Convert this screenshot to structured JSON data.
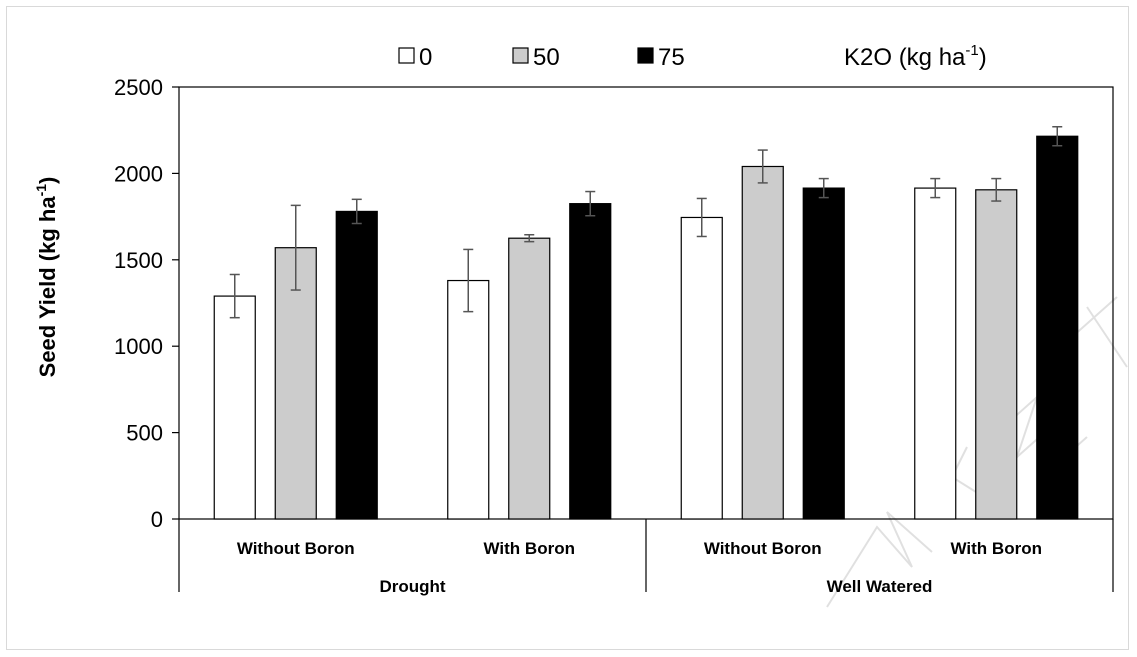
{
  "chart_data": {
    "type": "bar",
    "title": "",
    "ylabel": "Seed Yield (kg ha",
    "ylabel_sup": "-1",
    "ylabel_close": ")",
    "ylim": [
      0,
      2500
    ],
    "yticks": [
      0,
      500,
      1000,
      1500,
      2000,
      2500
    ],
    "grid": false,
    "legend_position": "top",
    "legend_title": "K2O (kg ha",
    "legend_title_sup": "-1",
    "legend_title_close": ")",
    "groups": [
      "Drought",
      "Well Watered"
    ],
    "categories": [
      "Without Boron",
      "With Boron",
      "Without Boron",
      "With Boron"
    ],
    "series": [
      {
        "name": "0",
        "color": "#ffffff",
        "values": [
          1290,
          1380,
          1745,
          1915
        ],
        "errors": [
          125,
          180,
          110,
          55
        ]
      },
      {
        "name": "50",
        "color": "#cccccc",
        "values": [
          1570,
          1625,
          2040,
          1905
        ],
        "errors": [
          245,
          20,
          95,
          65
        ]
      },
      {
        "name": "75",
        "color": "#000000",
        "values": [
          1780,
          1825,
          1915,
          2215
        ],
        "errors": [
          70,
          70,
          55,
          55
        ]
      }
    ]
  },
  "watermark": "REVIEW"
}
